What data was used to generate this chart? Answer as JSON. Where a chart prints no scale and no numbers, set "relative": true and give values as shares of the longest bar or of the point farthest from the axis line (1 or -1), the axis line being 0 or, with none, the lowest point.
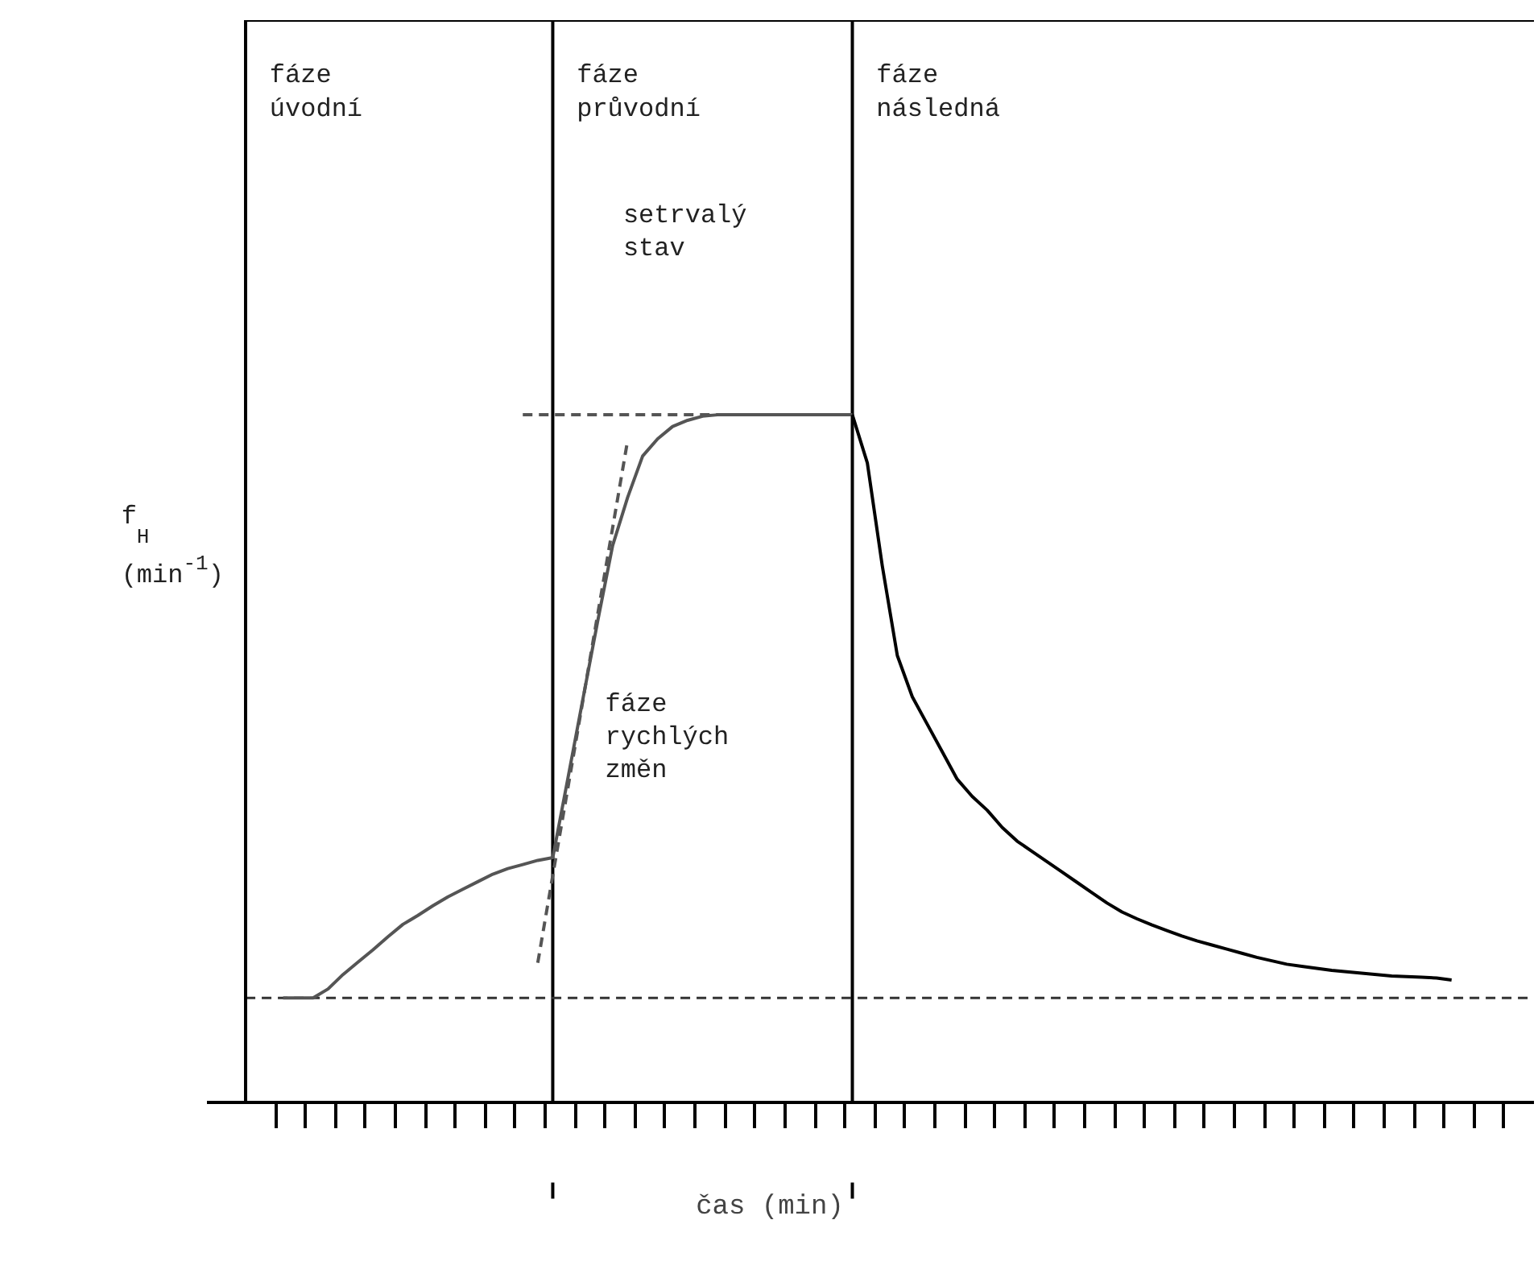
{
  "chart_data": {
    "type": "line",
    "relative": true,
    "xlabel": "čas (min)",
    "ylabel": "f$_{H}$ (min$^{-1}$)",
    "categories": [
      null,
      null,
      null,
      null,
      null,
      null,
      null,
      null,
      null,
      null,
      null,
      null,
      null,
      null,
      null,
      null,
      null,
      null,
      null,
      null,
      null,
      null,
      null,
      null,
      null,
      null,
      null,
      null,
      null,
      null,
      null,
      null,
      null,
      null,
      null,
      null,
      null,
      null,
      null,
      null,
      null,
      null,
      null,
      null,
      null,
      null,
      null,
      null,
      null,
      null,
      null,
      null,
      null,
      null,
      null,
      null,
      null,
      null,
      null,
      null,
      null,
      null,
      null,
      null,
      null,
      null,
      null,
      null,
      null,
      null,
      null,
      null,
      null,
      null,
      null,
      null,
      null,
      null,
      null,
      null,
      null,
      null,
      null,
      null,
      null,
      null
    ],
    "series": [
      {
        "color": "#555555",
        "values": [
          null,
          null,
          0.152,
          0.152,
          0.152,
          0.165,
          0.186,
          0.204,
          0.222,
          0.241,
          0.259,
          0.272,
          0.286,
          0.299,
          0.31,
          0.321,
          0.332,
          0.34,
          0.346,
          0.352,
          0.356,
          0.47,
          0.585,
          0.7,
          0.81,
          0.88,
          0.94,
          0.965,
          0.983,
          0.992,
          0.998,
          1,
          1,
          1,
          1,
          1,
          1,
          1,
          1,
          1,
          1,
          null,
          null,
          null,
          null,
          null,
          null,
          null,
          null,
          null,
          null,
          null,
          null,
          null,
          null,
          null,
          null,
          null,
          null,
          null,
          null,
          null,
          null,
          null,
          null,
          null,
          null,
          null,
          null,
          null,
          null,
          null,
          null,
          null,
          null,
          null,
          null,
          null,
          null,
          null,
          null,
          null,
          null,
          null,
          null,
          null
        ]
      },
      {
        "color": "#000000",
        "values": [
          null,
          null,
          null,
          null,
          null,
          null,
          null,
          null,
          null,
          null,
          null,
          null,
          null,
          null,
          null,
          null,
          null,
          null,
          null,
          null,
          null,
          null,
          null,
          null,
          null,
          null,
          null,
          null,
          null,
          null,
          null,
          null,
          null,
          null,
          null,
          null,
          null,
          null,
          null,
          null,
          1,
          0.93,
          0.78,
          0.65,
          0.59,
          0.55,
          0.51,
          0.47,
          0.445,
          0.425,
          0.4,
          0.38,
          0.365,
          0.35,
          0.335,
          0.32,
          0.305,
          0.29,
          0.277,
          0.267,
          0.258,
          0.25,
          0.242,
          0.235,
          0.229,
          0.223,
          0.217,
          0.211,
          0.206,
          0.201,
          0.198,
          0.195,
          0.192,
          0.19,
          0.188,
          0.186,
          0.184,
          0.183,
          0.182,
          0.181,
          0.178,
          null,
          null,
          null,
          null,
          null
        ]
      },
      {
        "color": "#555555",
        "line_style": "dashed",
        "values": [
          null,
          null,
          null,
          null,
          null,
          null,
          null,
          null,
          null,
          null,
          null,
          null,
          null,
          null,
          null,
          null,
          null,
          null,
          null,
          0.203,
          0.33,
          0.456,
          0.583,
          0.71,
          0.836,
          0.963,
          null,
          null,
          null,
          null,
          null,
          null,
          null,
          null,
          null,
          null,
          null,
          null,
          null,
          null,
          null,
          null,
          null,
          null,
          null,
          null,
          null,
          null,
          null,
          null,
          null,
          null,
          null,
          null,
          null,
          null,
          null,
          null,
          null,
          null,
          null,
          null,
          null,
          null,
          null,
          null,
          null,
          null,
          null,
          null,
          null,
          null,
          null,
          null,
          null,
          null,
          null,
          null,
          null,
          null,
          null,
          null,
          null,
          null,
          null,
          null
        ]
      },
      {
        "color": "#555555",
        "line_style": "dashed",
        "values": [
          null,
          null,
          null,
          null,
          null,
          null,
          null,
          null,
          null,
          null,
          null,
          null,
          null,
          null,
          null,
          null,
          null,
          null,
          1,
          1,
          1,
          1,
          1,
          1,
          1,
          1,
          1,
          1,
          1,
          1,
          1,
          1,
          null,
          null,
          null,
          null,
          null,
          null,
          null,
          null,
          null,
          null,
          null,
          null,
          null,
          null,
          null,
          null,
          null,
          null,
          null,
          null,
          null,
          null,
          null,
          null,
          null,
          null,
          null,
          null,
          null,
          null,
          null,
          null,
          null,
          null,
          null,
          null,
          null,
          null,
          null,
          null,
          null,
          null,
          null,
          null,
          null,
          null,
          null,
          null,
          null,
          null,
          null,
          null,
          null,
          null
        ]
      }
    ],
    "ref_lines": [
      {
        "axis": "y",
        "value": 0.152,
        "label": null,
        "color": "#333333",
        "line_style": "dashed"
      }
    ],
    "annotations": [
      "fáze úvodní",
      "fáze průvodní",
      "fáze následná",
      "setrvalý stav",
      "fáze rychlých změn"
    ],
    "grid": false
  }
}
